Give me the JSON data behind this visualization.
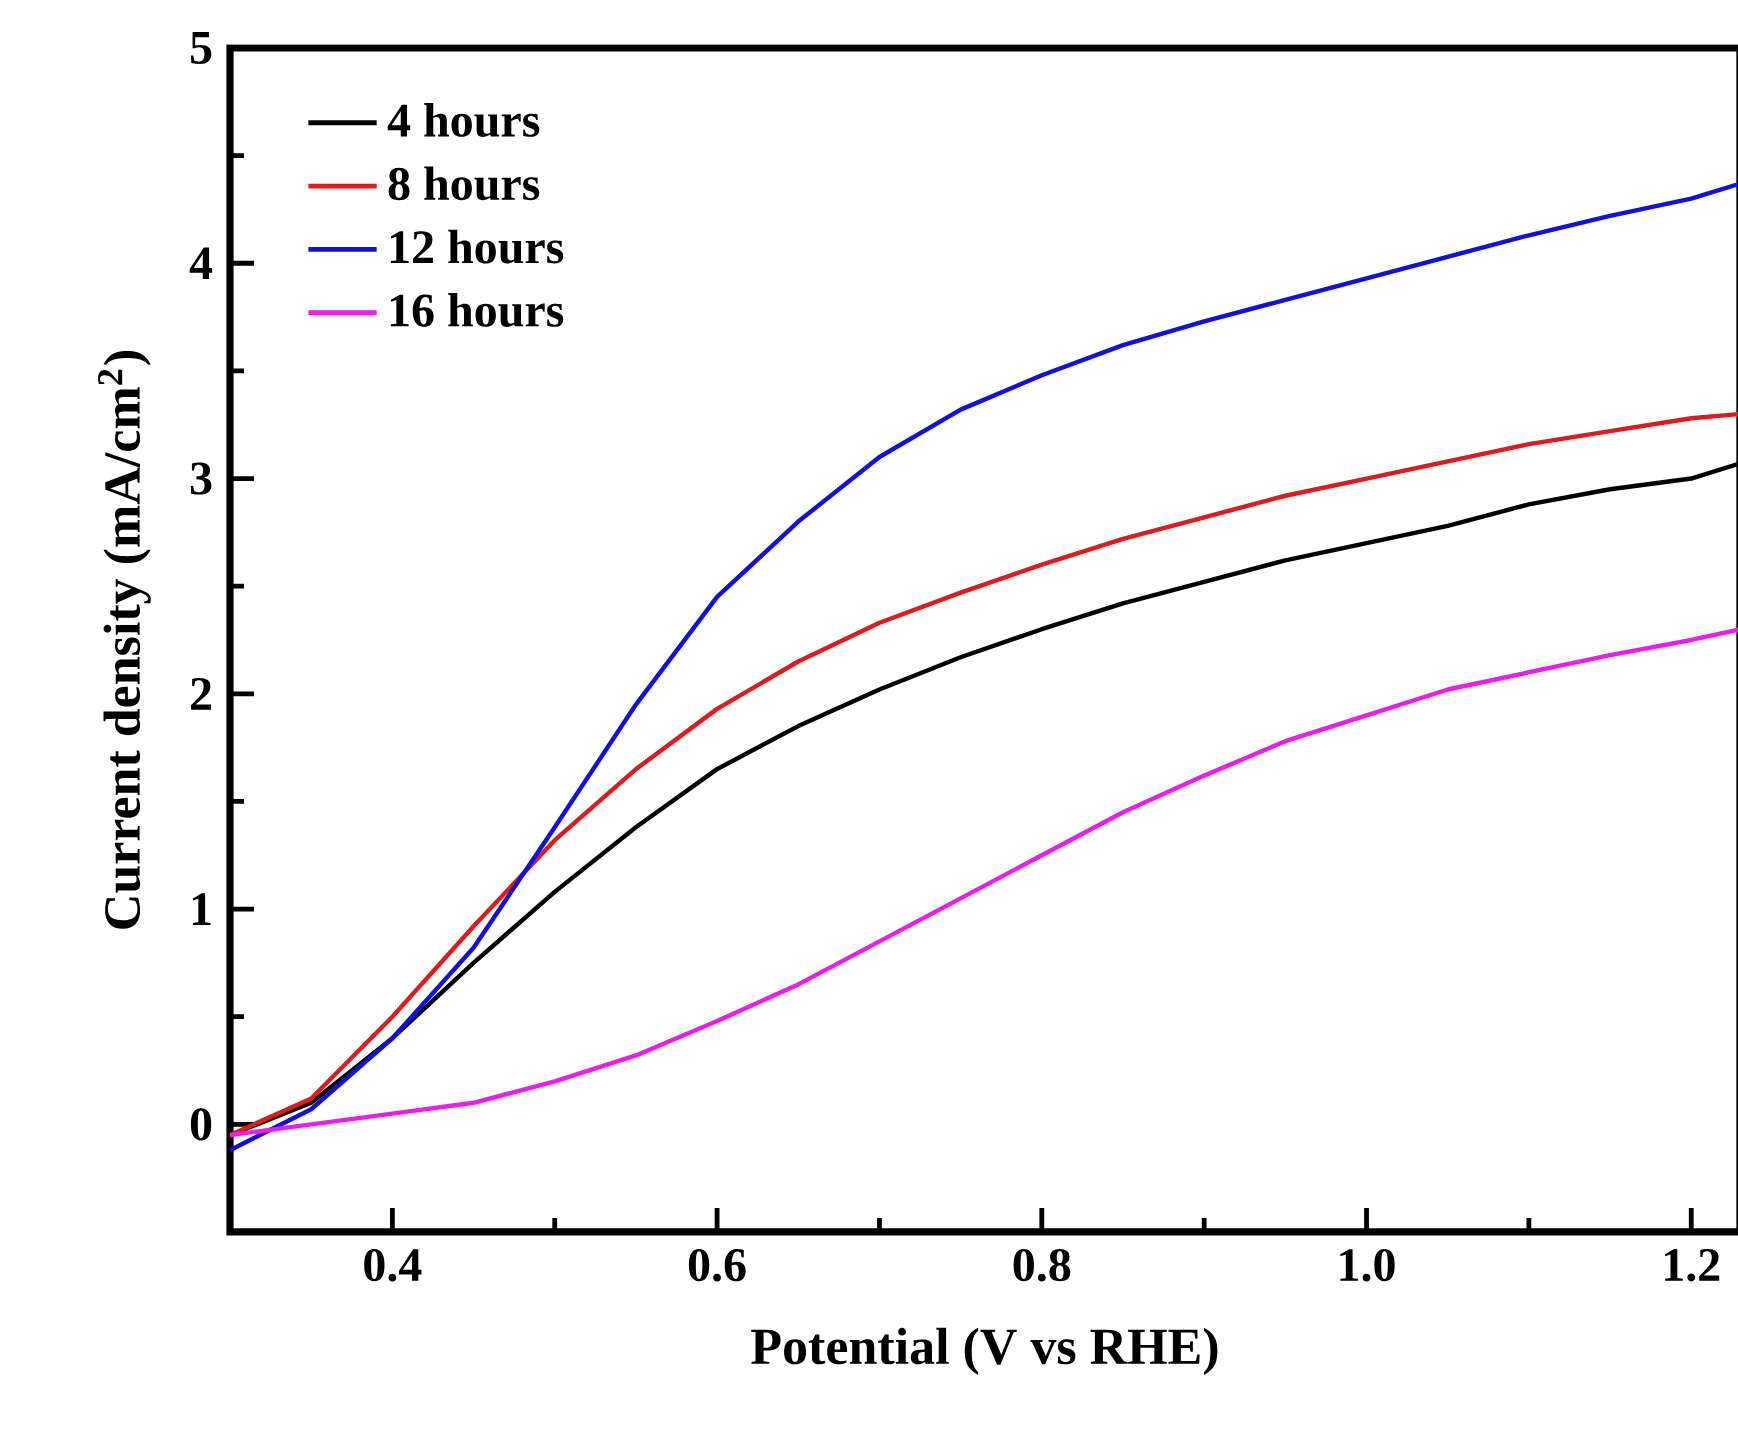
{
  "chart_data": {
    "type": "line",
    "xlabel": "Potential (V vs RHE)",
    "ylabel": "Current density (mA/cm$^{2}$)",
    "xlim": [
      0.3,
      1.23
    ],
    "ylim": [
      -0.5,
      5
    ],
    "xticks": [
      0.4,
      0.6,
      0.8,
      {
        "value": 1.0,
        "label": "1.0"
      },
      1.2
    ],
    "yticks": [
      0,
      1,
      2,
      3,
      4,
      5
    ],
    "legend": "top left",
    "x": [
      0.3,
      0.35,
      0.4,
      0.45,
      0.5,
      0.55,
      0.6,
      0.65,
      0.7,
      0.75,
      0.8,
      0.85,
      0.9,
      0.95,
      1.0,
      1.05,
      1.1,
      1.15,
      1.2,
      1.23
    ],
    "series": [
      {
        "name": "4 hours",
        "color": "#000000",
        "values": [
          -0.05,
          0.1,
          0.4,
          0.75,
          1.08,
          1.38,
          1.65,
          1.85,
          2.02,
          2.17,
          2.3,
          2.42,
          2.52,
          2.62,
          2.7,
          2.78,
          2.88,
          2.95,
          3.0,
          3.07
        ]
      },
      {
        "name": "8 hours",
        "color": "#e31a1c",
        "values": [
          -0.05,
          0.12,
          0.5,
          0.92,
          1.32,
          1.65,
          1.93,
          2.15,
          2.33,
          2.47,
          2.6,
          2.72,
          2.82,
          2.92,
          3.0,
          3.08,
          3.16,
          3.22,
          3.28,
          3.3
        ]
      },
      {
        "name": "12 hours",
        "color": "#1010e0",
        "values": [
          -0.12,
          0.07,
          0.4,
          0.82,
          1.38,
          1.95,
          2.45,
          2.8,
          3.1,
          3.32,
          3.48,
          3.62,
          3.73,
          3.83,
          3.93,
          4.03,
          4.13,
          4.22,
          4.3,
          4.37
        ]
      },
      {
        "name": "16 hours",
        "color": "#f01af0",
        "values": [
          -0.05,
          0.0,
          0.05,
          0.1,
          0.2,
          0.32,
          0.48,
          0.65,
          0.85,
          1.05,
          1.25,
          1.45,
          1.62,
          1.78,
          1.9,
          2.02,
          2.1,
          2.18,
          2.25,
          2.3
        ]
      }
    ]
  }
}
